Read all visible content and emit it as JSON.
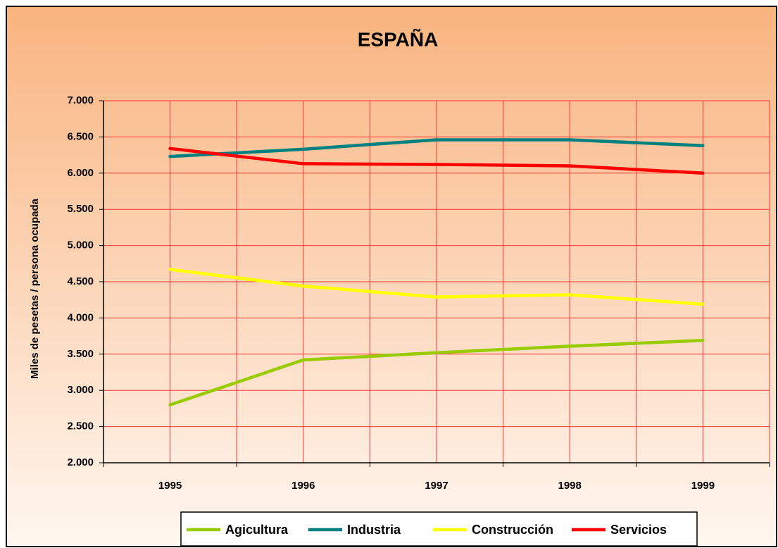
{
  "chart_data": {
    "type": "line",
    "title": "ESPAÑA",
    "y_label": "Miles de pesetas / persona ocupada",
    "categories": [
      "1995",
      "1996",
      "1997",
      "1998",
      "1999"
    ],
    "series": [
      {
        "name": "Agicultura",
        "color": "#99cc00",
        "values": [
          2800,
          3420,
          3520,
          3610,
          3690
        ]
      },
      {
        "name": "Industria",
        "color": "#008080",
        "values": [
          6230,
          6330,
          6460,
          6460,
          6380
        ]
      },
      {
        "name": "Construcción",
        "color": "#ffff00",
        "values": [
          4670,
          4440,
          4290,
          4320,
          4190
        ]
      },
      {
        "name": "Servicios",
        "color": "#ff0000",
        "values": [
          6340,
          6130,
          6120,
          6100,
          6000
        ]
      }
    ],
    "ylim": [
      2000,
      7000
    ],
    "yticks": [
      {
        "value": 2000,
        "label": "2.000"
      },
      {
        "value": 2500,
        "label": "2.500"
      },
      {
        "value": 3000,
        "label": "3.000"
      },
      {
        "value": 3500,
        "label": "3.500"
      },
      {
        "value": 4000,
        "label": "4.000"
      },
      {
        "value": 4500,
        "label": "4.500"
      },
      {
        "value": 5000,
        "label": "5.000"
      },
      {
        "value": 5500,
        "label": "5.500"
      },
      {
        "value": 6000,
        "label": "6.000"
      },
      {
        "value": 6500,
        "label": "6.500"
      },
      {
        "value": 7000,
        "label": "7.000"
      }
    ],
    "grid": true,
    "grid_color": "#ff3333",
    "legend": "bottom"
  }
}
